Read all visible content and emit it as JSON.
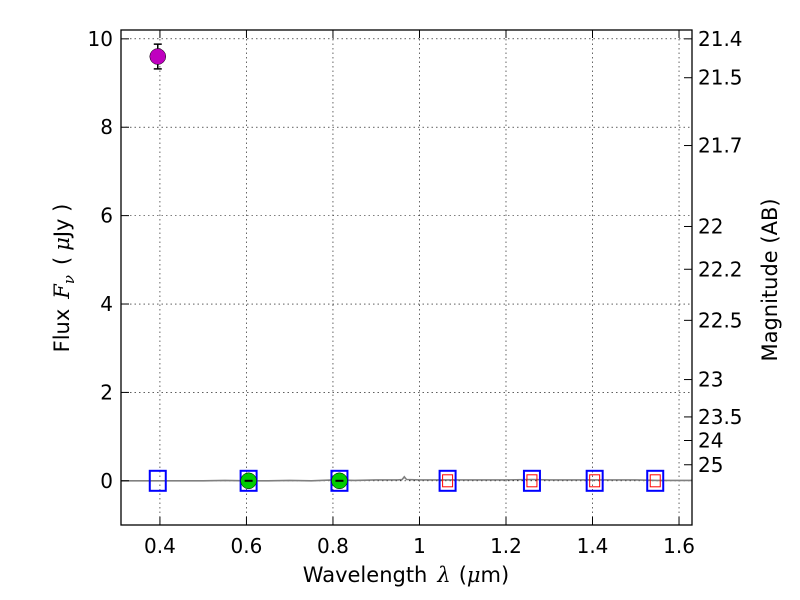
{
  "chart_data": {
    "type": "scatter",
    "title": "",
    "xlabel_prefix": "Wavelength",
    "xlabel_symbol": "λ",
    "xlabel_unit_open": "(",
    "xlabel_unit_mu": "μ",
    "xlabel_unit_rest": "m)",
    "ylabel_prefix": "Flux",
    "ylabel_symbol": "F",
    "ylabel_subscript": "ν",
    "ylabel_unit_open": "(",
    "ylabel_unit_mu": "μ",
    "ylabel_unit_rest": "Jy )",
    "y2label": "Magnitude (AB)",
    "xlim": [
      0.31,
      1.63
    ],
    "ylim": [
      -1.0,
      10.2
    ],
    "grid": true,
    "x_ticks": [
      0.4,
      0.6,
      0.8,
      1.0,
      1.2,
      1.4,
      1.6
    ],
    "x_tick_labels": [
      "0.4",
      "0.6",
      "0.8",
      "1",
      "1.2",
      "1.4",
      "1.6"
    ],
    "y_ticks": [
      0,
      2,
      4,
      6,
      8,
      10
    ],
    "y_tick_labels": [
      "0",
      "2",
      "4",
      "6",
      "8",
      "10"
    ],
    "y2_ticks": [
      {
        "mag": 21.4,
        "label": "21.4"
      },
      {
        "mag": 21.5,
        "label": "21.5"
      },
      {
        "mag": 21.7,
        "label": "21.7"
      },
      {
        "mag": 22.0,
        "label": "22"
      },
      {
        "mag": 22.2,
        "label": "22.2"
      },
      {
        "mag": 22.5,
        "label": "22.5"
      },
      {
        "mag": 23.0,
        "label": "23"
      },
      {
        "mag": 23.5,
        "label": "23.5"
      },
      {
        "mag": 24.0,
        "label": "24"
      },
      {
        "mag": 25.0,
        "label": "25"
      }
    ],
    "series": [
      {
        "name": "model-spectrum",
        "type": "line",
        "color": "#808080",
        "x": [
          0.31,
          0.35,
          0.4,
          0.45,
          0.5,
          0.55,
          0.6,
          0.65,
          0.7,
          0.75,
          0.8,
          0.85,
          0.9,
          0.95,
          0.96,
          0.965,
          0.97,
          1.0,
          1.06,
          1.1,
          1.2,
          1.26,
          1.3,
          1.4,
          1.5,
          1.55,
          1.63
        ],
        "y": [
          0.0,
          0.0,
          0.0,
          0.0,
          0.0,
          0.01,
          0.0,
          0.0,
          0.01,
          0.0,
          0.02,
          0.01,
          0.02,
          0.02,
          0.03,
          0.09,
          0.03,
          0.02,
          0.02,
          0.02,
          0.02,
          0.03,
          0.02,
          0.02,
          0.02,
          0.01,
          0.01
        ]
      },
      {
        "name": "model-photometry",
        "type": "open-square",
        "color": "#0000ff",
        "x": [
          0.395,
          0.605,
          0.815,
          1.065,
          1.26,
          1.405,
          1.545
        ],
        "y": [
          0.0,
          0.0,
          0.0,
          0.0,
          0.0,
          0.0,
          0.0
        ]
      },
      {
        "name": "upper-limits",
        "type": "small-open-square",
        "color": "#ff0000",
        "x": [
          1.065,
          1.26,
          1.405,
          1.545
        ],
        "y": [
          0.0,
          0.0,
          0.0,
          0.0
        ]
      },
      {
        "name": "detections-green",
        "type": "filled-circle",
        "color": "#00cc00",
        "x": [
          0.605,
          0.815
        ],
        "y": [
          0.0,
          0.0
        ],
        "yerr": [
          0.05,
          0.05
        ]
      },
      {
        "name": "detection-magenta",
        "type": "filled-circle",
        "color": "#bf00bf",
        "x": [
          0.395
        ],
        "y": [
          9.6
        ],
        "yerr": [
          0.28
        ]
      }
    ]
  }
}
